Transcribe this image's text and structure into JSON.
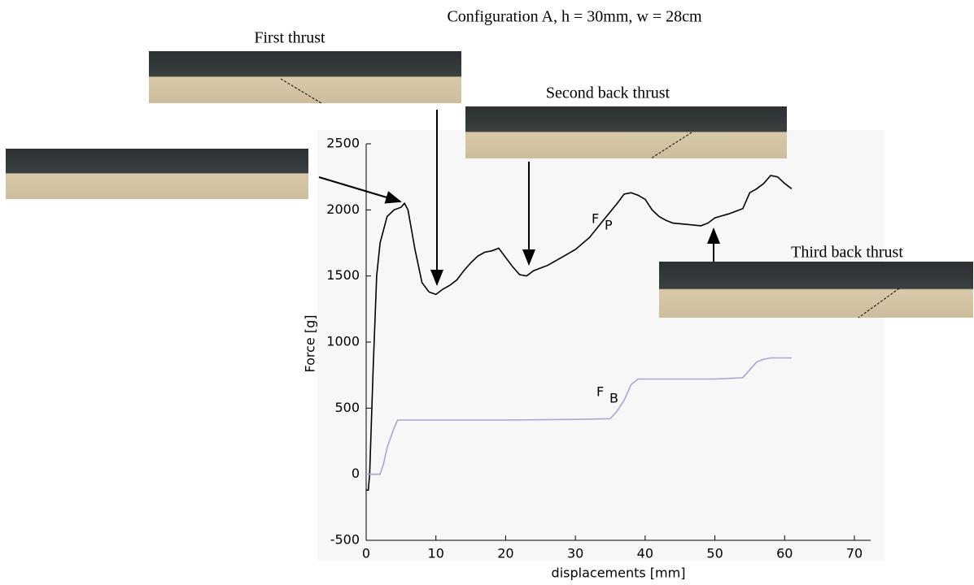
{
  "chart_data": {
    "type": "line",
    "title": "Configuration A, h = 30mm, w = 28cm",
    "xlabel": "displacements [mm]",
    "ylabel": "Force [g]",
    "xlim": [
      0,
      70
    ],
    "xticks": [
      0,
      10,
      20,
      30,
      40,
      50,
      60,
      70
    ],
    "ylim": [
      -500,
      2500
    ],
    "yticks": [
      -500,
      0,
      500,
      1000,
      1500,
      2000,
      2500
    ],
    "annotations": [
      "First thrust",
      "Second back thrust",
      "Third back thrust"
    ],
    "series": [
      {
        "label": "F",
        "label_sub": "P",
        "color": "#000000",
        "x": [
          0,
          0.3,
          0.5,
          1,
          1.5,
          2,
          3,
          4,
          5,
          5.5,
          6,
          7,
          8,
          9,
          10,
          11,
          12,
          13,
          14,
          15,
          16,
          17,
          18,
          19,
          20,
          21,
          22,
          23,
          24,
          25,
          26,
          27,
          28,
          30,
          32,
          34,
          36,
          37,
          38,
          39,
          40,
          41,
          42,
          43,
          44,
          46,
          48,
          49,
          50,
          52,
          54,
          55,
          56,
          57,
          58,
          59,
          60,
          61
        ],
        "values": [
          -120,
          -120,
          0,
          800,
          1500,
          1750,
          1950,
          2000,
          2020,
          2050,
          2000,
          1700,
          1450,
          1380,
          1360,
          1400,
          1430,
          1470,
          1540,
          1600,
          1650,
          1680,
          1690,
          1710,
          1640,
          1570,
          1510,
          1500,
          1540,
          1560,
          1580,
          1610,
          1640,
          1700,
          1790,
          1920,
          2050,
          2120,
          2130,
          2110,
          2080,
          2000,
          1950,
          1920,
          1900,
          1890,
          1880,
          1900,
          1940,
          1970,
          2010,
          2130,
          2160,
          2200,
          2260,
          2250,
          2200,
          2160
        ]
      },
      {
        "label": "F",
        "label_sub": "B",
        "color": "#a9a6cf",
        "x": [
          0,
          2,
          2.5,
          3,
          4,
          4.5,
          10,
          20,
          30,
          35,
          36,
          37,
          38,
          39,
          45,
          50,
          54,
          55,
          56,
          57,
          58,
          61
        ],
        "values": [
          0,
          0,
          80,
          200,
          350,
          410,
          410,
          410,
          415,
          420,
          480,
          560,
          680,
          720,
          720,
          720,
          730,
          790,
          850,
          870,
          880,
          880
        ]
      }
    ]
  }
}
